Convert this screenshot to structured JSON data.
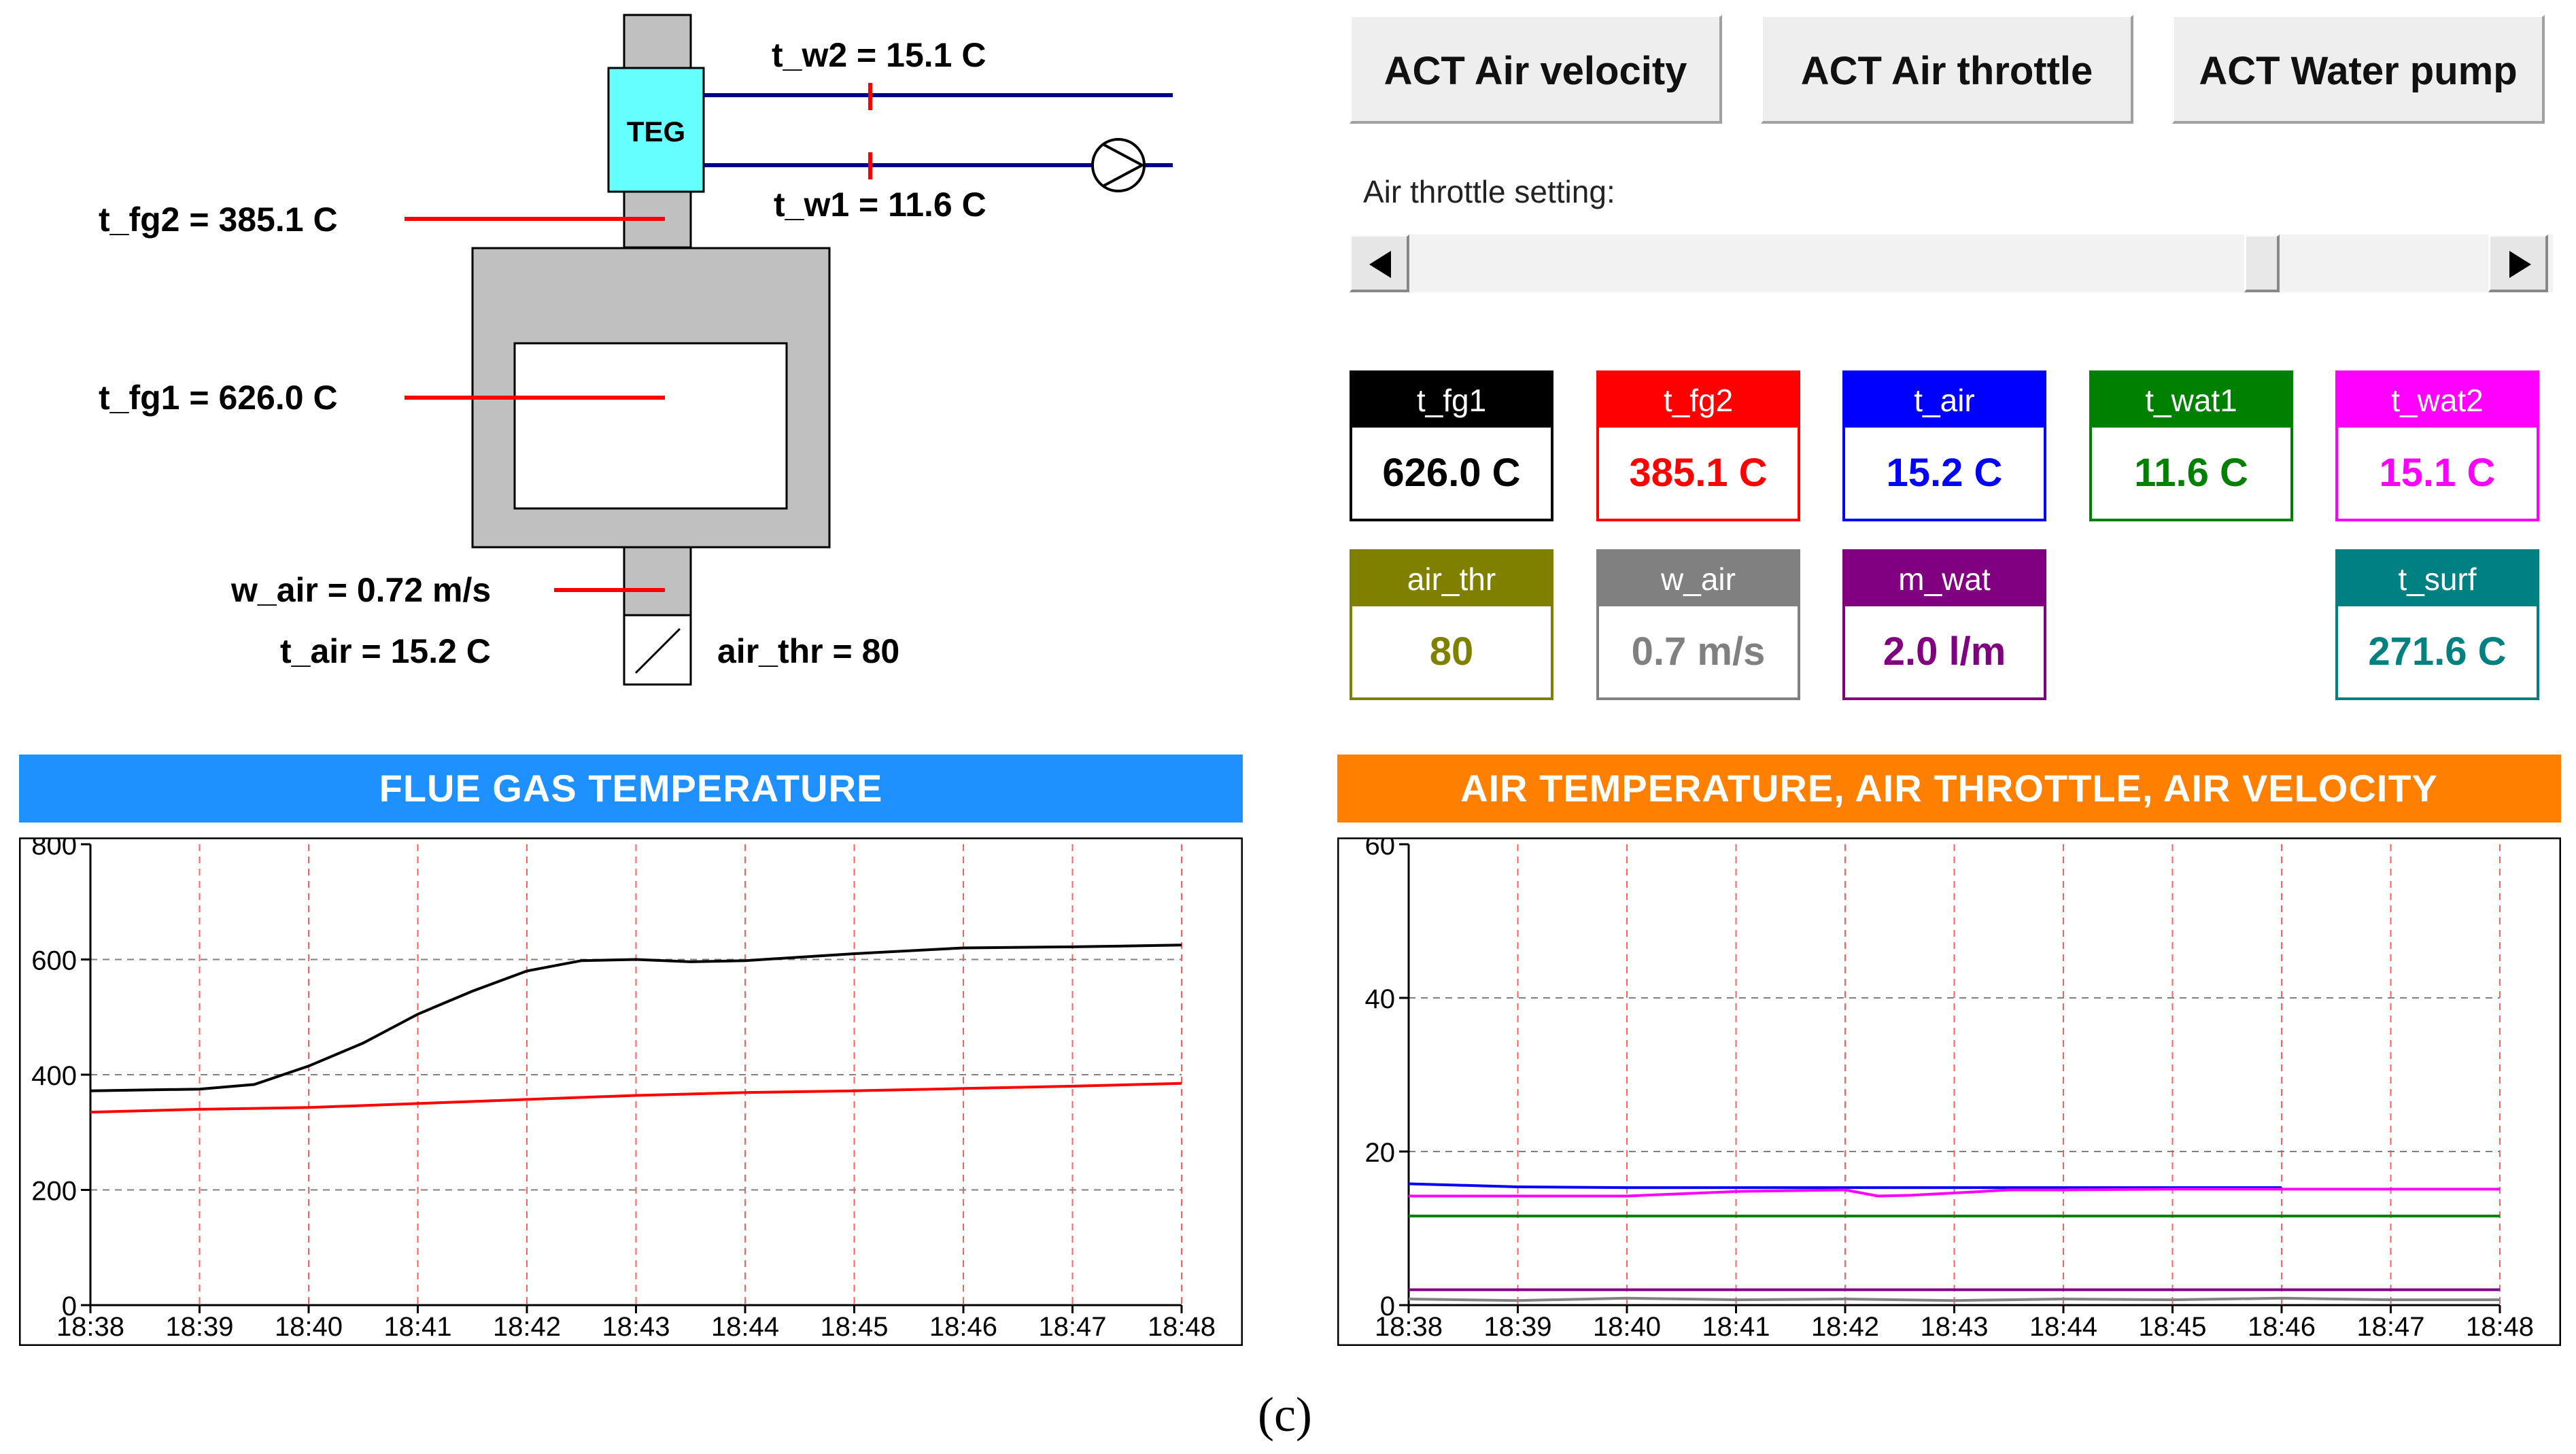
{
  "diagram": {
    "teg_label": "TEG",
    "t_w2": "t_w2 =  15.1  C",
    "t_w1": "t_w1 =  11.6  C",
    "t_fg2": "t_fg2 =  385.1  C",
    "t_fg1": "t_fg1 =  626.0  C",
    "w_air": "w_air =  0.72  m/s",
    "t_air": "t_air =  15.2  C",
    "air_thr": "air_thr =  80"
  },
  "buttons": {
    "air_velocity": "ACT Air velocity",
    "air_throttle": "ACT Air throttle",
    "water_pump": "ACT Water pump"
  },
  "slider": {
    "label": "Air throttle setting:",
    "value_percent": 80
  },
  "values": [
    {
      "name": "t_fg1",
      "value": "626.0  C",
      "color": "#000000",
      "text_color": "#000000"
    },
    {
      "name": "t_fg2",
      "value": "385.1  C",
      "color": "#ff0000",
      "text_color": "#ff0000"
    },
    {
      "name": "t_air",
      "value": "15.2  C",
      "color": "#0000ff",
      "text_color": "#0000ff"
    },
    {
      "name": "t_wat1",
      "value": "11.6  C",
      "color": "#008000",
      "text_color": "#008000"
    },
    {
      "name": "t_wat2",
      "value": "15.1  C",
      "color": "#ff00ff",
      "text_color": "#ff00ff"
    },
    {
      "name": "air_thr",
      "value": "80",
      "color": "#808000",
      "text_color": "#808000"
    },
    {
      "name": "w_air",
      "value": "0.7  m/s",
      "color": "#808080",
      "text_color": "#808080"
    },
    {
      "name": "m_wat",
      "value": "2.0  l/m",
      "color": "#800080",
      "text_color": "#800080"
    },
    {
      "name": "t_surf",
      "value": "271.6  C",
      "color": "#008080",
      "text_color": "#008080"
    }
  ],
  "panels": {
    "left_title": "FLUE GAS TEMPERATURE",
    "right_title": "AIR TEMPERATURE, AIR THROTTLE, AIR VELOCITY",
    "left_color": "#1e90ff",
    "right_color": "#ff8000"
  },
  "caption": "(c)",
  "chart_data": [
    {
      "type": "line",
      "title": "FLUE GAS TEMPERATURE",
      "categories": [
        "18:38",
        "18:39",
        "18:40",
        "18:41",
        "18:42",
        "18:43",
        "18:44",
        "18:45",
        "18:46",
        "18:47",
        "18:48"
      ],
      "ylim": [
        0,
        800
      ],
      "yticks": [
        "0",
        "200",
        "400",
        "600",
        "800"
      ],
      "series": [
        {
          "name": "t_fg1",
          "color": "#000000",
          "x": [
            0,
            1,
            1.5,
            2,
            2.5,
            3,
            3.5,
            4,
            4.5,
            5,
            5.5,
            6,
            7,
            8,
            9,
            10
          ],
          "values": [
            372,
            375,
            383,
            415,
            455,
            505,
            545,
            580,
            598,
            600,
            596,
            598,
            610,
            620,
            622,
            625
          ]
        },
        {
          "name": "t_fg2",
          "color": "#ff0000",
          "x": [
            0,
            1,
            2,
            3,
            4,
            5,
            6,
            7,
            8,
            9,
            10
          ],
          "values": [
            335,
            340,
            343,
            350,
            357,
            364,
            369,
            372,
            376,
            380,
            385
          ]
        }
      ]
    },
    {
      "type": "line",
      "title": "AIR TEMPERATURE, AIR THROTTLE, AIR VELOCITY",
      "categories": [
        "18:38",
        "18:39",
        "18:40",
        "18:41",
        "18:42",
        "18:43",
        "18:44",
        "18:45",
        "18:46",
        "18:47",
        "18:48"
      ],
      "ylim": [
        0,
        60
      ],
      "yticks": [
        "0",
        "20",
        "40",
        "60"
      ],
      "series": [
        {
          "name": "t_air",
          "color": "#0000ff",
          "x": [
            0,
            0.5,
            1,
            2,
            3,
            4,
            5,
            6,
            7,
            8
          ],
          "values": [
            15.8,
            15.6,
            15.4,
            15.3,
            15.3,
            15.3,
            15.3,
            15.3,
            15.3,
            15.3
          ]
        },
        {
          "name": "t_wat2",
          "color": "#ff00ff",
          "x": [
            0,
            1,
            2,
            3,
            4,
            4.3,
            4.6,
            5,
            5.5,
            6,
            7,
            8,
            9,
            10
          ],
          "values": [
            14.2,
            14.2,
            14.2,
            14.8,
            15.0,
            14.2,
            14.3,
            14.6,
            15.0,
            15.0,
            15.1,
            15.1,
            15.1,
            15.1
          ]
        },
        {
          "name": "t_wat1",
          "color": "#008000",
          "x": [
            0,
            10
          ],
          "values": [
            11.6,
            11.6
          ]
        },
        {
          "name": "m_wat",
          "color": "#800080",
          "x": [
            0,
            10
          ],
          "values": [
            2.0,
            2.0
          ]
        },
        {
          "name": "w_air",
          "color": "#808080",
          "x": [
            0,
            1,
            2,
            3,
            4,
            5,
            6,
            7,
            8,
            9,
            10
          ],
          "values": [
            0.8,
            0.6,
            0.9,
            0.7,
            0.8,
            0.6,
            0.8,
            0.7,
            0.9,
            0.7,
            0.7
          ]
        }
      ]
    }
  ]
}
